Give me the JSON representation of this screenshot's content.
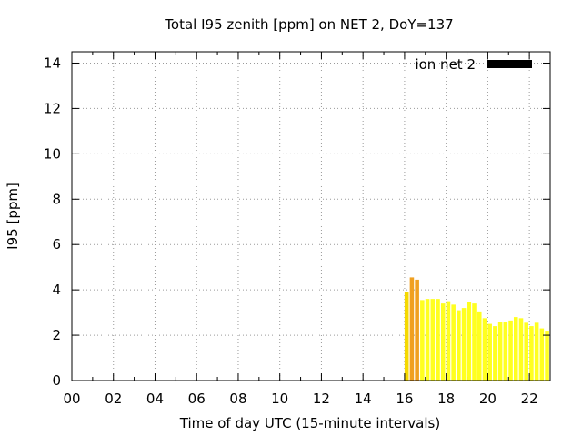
{
  "chart_data": {
    "type": "bar",
    "title": "Total I95 zenith [ppm] on NET 2, DoY=137",
    "xlabel": "Time of day UTC (15-minute intervals)",
    "ylabel": "I95 [ppm]",
    "xlim": [
      0,
      23
    ],
    "ylim": [
      0,
      14.5
    ],
    "x_ticks": [
      0,
      2,
      4,
      6,
      8,
      10,
      12,
      14,
      16,
      18,
      20,
      22
    ],
    "x_tick_labels": [
      "00",
      "02",
      "04",
      "06",
      "08",
      "10",
      "12",
      "14",
      "16",
      "18",
      "20",
      "22"
    ],
    "y_ticks": [
      0,
      2,
      4,
      6,
      8,
      10,
      12,
      14
    ],
    "y_tick_labels": [
      "0",
      "2",
      "4",
      "6",
      "8",
      "10",
      "12",
      "14"
    ],
    "grid": true,
    "legend_position": "top-right",
    "series": [
      {
        "name": "ion net 2",
        "legend_color": "#000000",
        "x": [
          16.0,
          16.25,
          16.5,
          16.75,
          17.0,
          17.25,
          17.5,
          17.75,
          18.0,
          18.25,
          18.5,
          18.75,
          19.0,
          19.25,
          19.5,
          19.75,
          20.0,
          20.25,
          20.5,
          20.75,
          21.0,
          21.25,
          21.5,
          21.75,
          22.0,
          22.25,
          22.5,
          22.75
        ],
        "values": [
          3.9,
          4.55,
          4.45,
          3.55,
          3.6,
          3.6,
          3.6,
          3.4,
          3.5,
          3.35,
          3.1,
          3.2,
          3.45,
          3.4,
          3.05,
          2.75,
          2.5,
          2.4,
          2.6,
          2.6,
          2.65,
          2.8,
          2.75,
          2.55,
          2.4,
          2.55,
          2.3,
          2.2
        ],
        "colors": [
          "#f5d800",
          "#f0a020",
          "#f0a020",
          "#ffff20",
          "#ffff20",
          "#ffff20",
          "#ffff20",
          "#ffff20",
          "#ffff20",
          "#ffff20",
          "#ffff20",
          "#ffff20",
          "#ffff20",
          "#ffff20",
          "#ffff20",
          "#ffff20",
          "#ffff20",
          "#ffff20",
          "#ffff20",
          "#ffff20",
          "#ffff20",
          "#ffff20",
          "#ffff20",
          "#ffff20",
          "#ffff20",
          "#ffff20",
          "#ffff20",
          "#ffff20"
        ]
      }
    ]
  }
}
